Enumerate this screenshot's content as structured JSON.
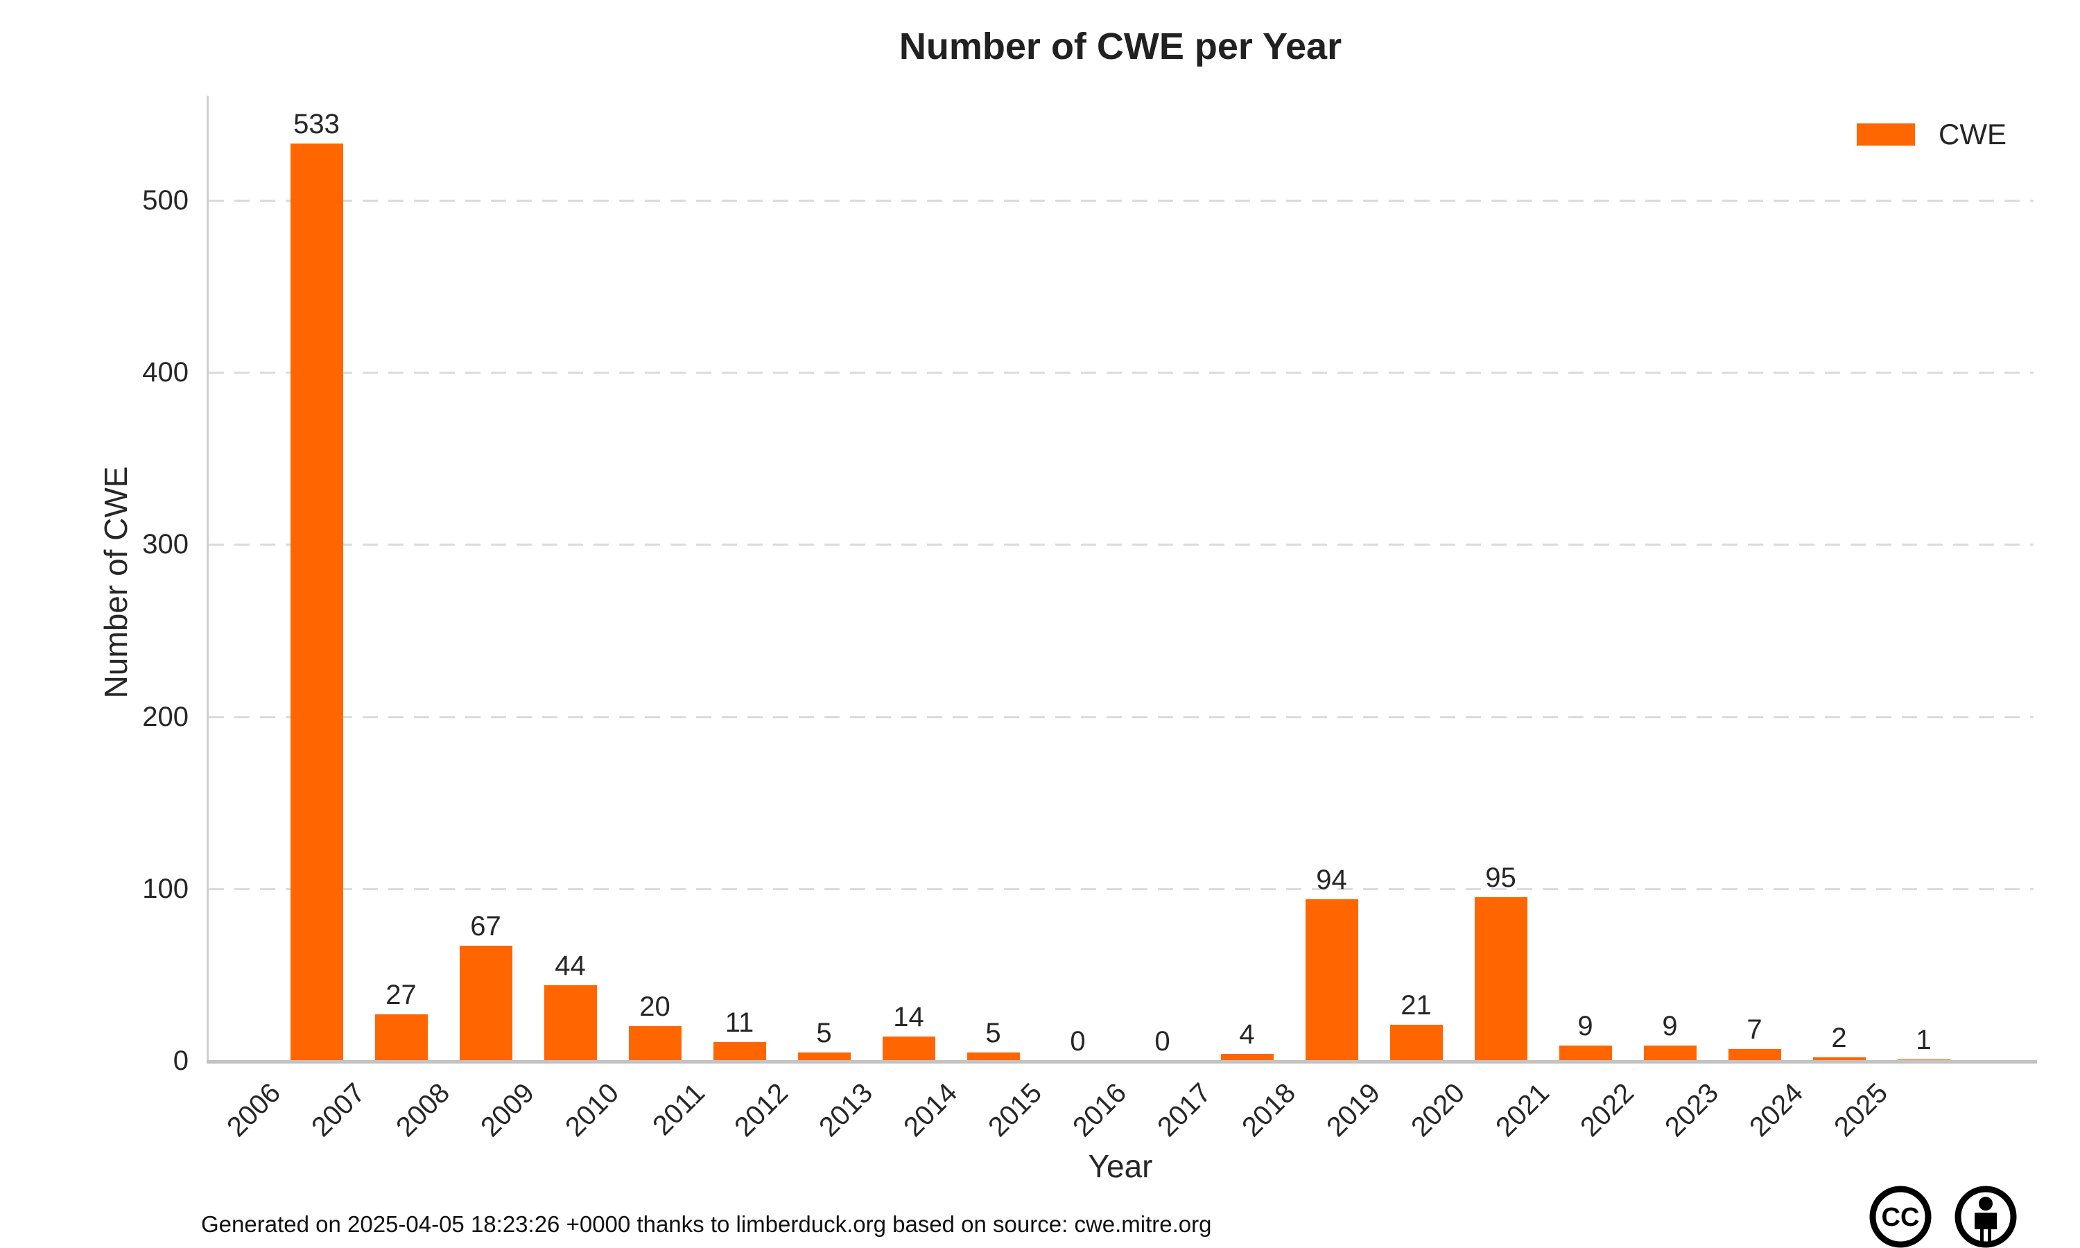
{
  "chart_data": {
    "type": "bar",
    "title": "Number of CWE per Year",
    "xlabel": "Year",
    "ylabel": "Number of CWE",
    "categories": [
      "2006",
      "2007",
      "2008",
      "2009",
      "2010",
      "2011",
      "2012",
      "2013",
      "2014",
      "2015",
      "2016",
      "2017",
      "2018",
      "2019",
      "2020",
      "2021",
      "2022",
      "2023",
      "2024",
      "2025"
    ],
    "values": [
      533,
      27,
      67,
      44,
      20,
      11,
      5,
      14,
      5,
      0,
      0,
      4,
      94,
      21,
      95,
      9,
      9,
      7,
      2,
      1
    ],
    "ylim": [
      0,
      560
    ],
    "yticks": [
      0,
      100,
      200,
      300,
      400,
      500
    ],
    "grid": "horizontal-dashed",
    "value_labels": true,
    "bar_color": "#FF6600",
    "legend": [
      {
        "name": "CWE",
        "color": "#FF6600"
      }
    ],
    "legend_position": "top-right"
  },
  "footer": {
    "credit": "Generated on 2025-04-05 18:23:26 +0000 thanks to limberduck.org based on source: cwe.mitre.org"
  },
  "license": {
    "icons": [
      "cc-icon",
      "cc-by-person-icon"
    ],
    "cc_text": "CC"
  }
}
